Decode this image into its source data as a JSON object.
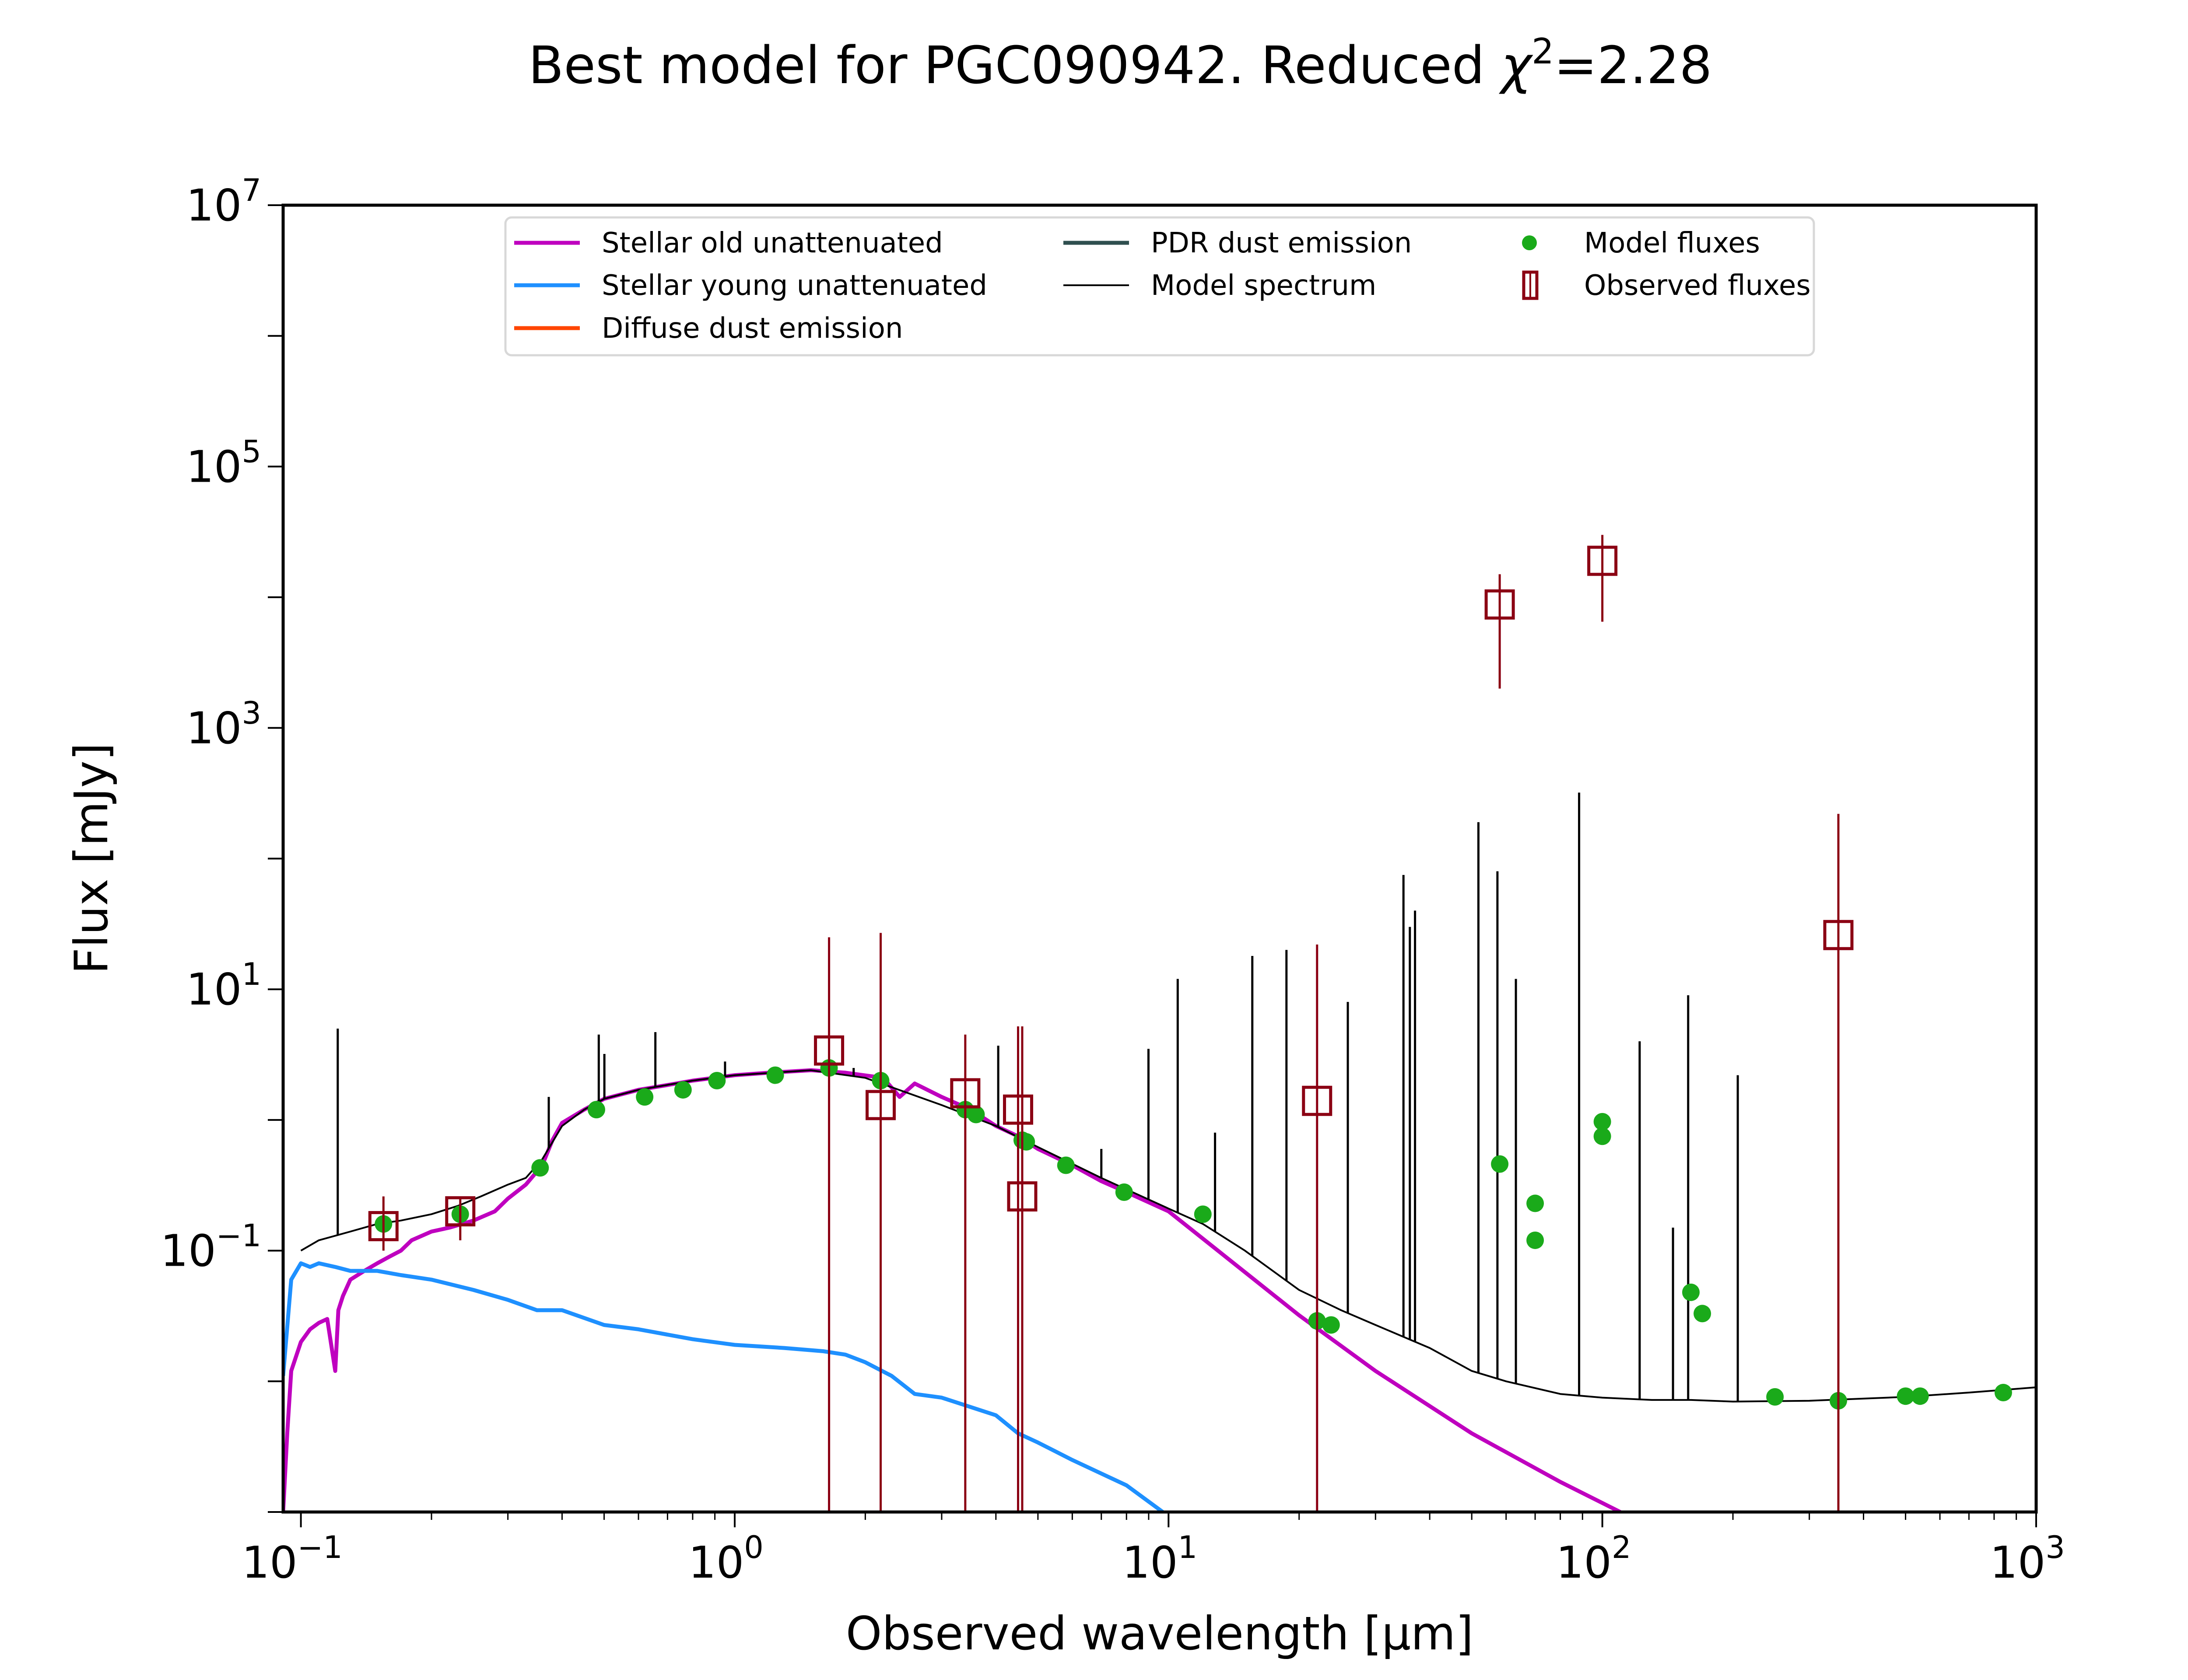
{
  "chart_data": {
    "type": "line",
    "title": "Best model for PGC090942. Reduced χ²=2.28",
    "title_parts": {
      "prefix": "Best model for PGC090942. Reduced ",
      "chi": "χ",
      "sup": "2",
      "suffix": "=2.28"
    },
    "xlabel": "Observed wavelength [μm]",
    "ylabel": "Flux [mJy]",
    "xscale": "log",
    "yscale": "log",
    "xlim": [
      0.091,
      1000
    ],
    "ylim": [
      0.001,
      10000000
    ],
    "x_ticks": [
      {
        "base": "10",
        "exp": "−1",
        "value": 0.1
      },
      {
        "base": "10",
        "exp": "0",
        "value": 1
      },
      {
        "base": "10",
        "exp": "1",
        "value": 10
      },
      {
        "base": "10",
        "exp": "2",
        "value": 100
      },
      {
        "base": "10",
        "exp": "3",
        "value": 1000
      }
    ],
    "y_ticks": [
      {
        "base": "10",
        "exp": "−1",
        "value": 0.1
      },
      {
        "base": "10",
        "exp": "1",
        "value": 10
      },
      {
        "base": "10",
        "exp": "3",
        "value": 1000
      },
      {
        "base": "10",
        "exp": "5",
        "value": 100000
      },
      {
        "base": "10",
        "exp": "7",
        "value": 10000000
      }
    ],
    "grid": false,
    "legend": {
      "position": "top-center",
      "entries": [
        {
          "label": "Stellar old unattenuated",
          "color": "#bf00bf",
          "kind": "line"
        },
        {
          "label": "Stellar young unattenuated",
          "color": "#1e90ff",
          "kind": "line"
        },
        {
          "label": "Diffuse dust emission",
          "color": "#ff4500",
          "kind": "line"
        },
        {
          "label": "PDR dust emission",
          "color": "#2f4f4f",
          "kind": "line"
        },
        {
          "label": "Model spectrum",
          "color": "#000000",
          "kind": "thinline"
        },
        {
          "label": "Model fluxes",
          "color": "#1aaa1a",
          "kind": "dot"
        },
        {
          "label": "Observed fluxes",
          "color": "#8b0013",
          "kind": "square"
        }
      ]
    },
    "series": [
      {
        "name": "Stellar old unattenuated",
        "color": "#bf00bf",
        "x": [
          0.091,
          0.093,
          0.095,
          0.1,
          0.105,
          0.11,
          0.115,
          0.12,
          0.122,
          0.125,
          0.13,
          0.14,
          0.15,
          0.16,
          0.17,
          0.18,
          0.2,
          0.22,
          0.25,
          0.28,
          0.3,
          0.33,
          0.36,
          0.38,
          0.4,
          0.45,
          0.5,
          0.6,
          0.7,
          0.8,
          1.0,
          1.2,
          1.5,
          1.8,
          2.2,
          2.4,
          2.6,
          3.0,
          3.5,
          4.0,
          4.5,
          5.0,
          6.0,
          7.0,
          8.0,
          10,
          20,
          30,
          50,
          80,
          110
        ],
        "y": [
          0.001,
          0.004,
          0.012,
          0.02,
          0.025,
          0.028,
          0.03,
          0.012,
          0.035,
          0.045,
          0.06,
          0.07,
          0.08,
          0.09,
          0.1,
          0.12,
          0.14,
          0.15,
          0.17,
          0.2,
          0.25,
          0.32,
          0.45,
          0.7,
          0.95,
          1.2,
          1.45,
          1.7,
          1.85,
          2.0,
          2.2,
          2.3,
          2.4,
          2.3,
          2.1,
          1.5,
          1.9,
          1.5,
          1.2,
          0.9,
          0.75,
          0.6,
          0.45,
          0.34,
          0.28,
          0.2,
          0.032,
          0.012,
          0.004,
          0.0017,
          0.001
        ]
      },
      {
        "name": "Stellar young unattenuated",
        "color": "#1e90ff",
        "x": [
          0.091,
          0.095,
          0.1,
          0.105,
          0.11,
          0.12,
          0.13,
          0.15,
          0.17,
          0.2,
          0.25,
          0.3,
          0.35,
          0.4,
          0.5,
          0.6,
          0.8,
          1.0,
          1.3,
          1.6,
          1.8,
          2.0,
          2.3,
          2.6,
          3.0,
          4.0,
          4.5,
          5.0,
          6.0,
          8.0,
          9.7
        ],
        "y": [
          0.011,
          0.06,
          0.08,
          0.075,
          0.08,
          0.075,
          0.07,
          0.07,
          0.065,
          0.06,
          0.05,
          0.042,
          0.035,
          0.035,
          0.027,
          0.025,
          0.021,
          0.019,
          0.018,
          0.017,
          0.016,
          0.014,
          0.011,
          0.008,
          0.0075,
          0.0055,
          0.004,
          0.0034,
          0.0025,
          0.0016,
          0.001
        ]
      },
      {
        "name": "Model spectrum",
        "color": "#000000",
        "x": [
          0.1,
          0.11,
          0.12,
          0.13,
          0.15,
          0.17,
          0.2,
          0.23,
          0.26,
          0.3,
          0.33,
          0.36,
          0.4,
          0.45,
          0.5,
          0.6,
          0.8,
          1.0,
          1.5,
          2.0,
          3.0,
          4.0,
          5.0,
          7.0,
          10,
          12,
          15,
          20,
          25,
          30,
          40,
          50,
          60,
          80,
          100,
          130,
          160,
          200,
          300,
          500,
          700,
          1000
        ],
        "y": [
          0.1,
          0.12,
          0.13,
          0.14,
          0.16,
          0.17,
          0.19,
          0.22,
          0.26,
          0.32,
          0.36,
          0.5,
          0.9,
          1.2,
          1.45,
          1.7,
          2.0,
          2.2,
          2.4,
          2.1,
          1.3,
          0.9,
          0.62,
          0.36,
          0.21,
          0.16,
          0.1,
          0.05,
          0.035,
          0.027,
          0.018,
          0.012,
          0.01,
          0.008,
          0.0075,
          0.0072,
          0.0072,
          0.007,
          0.0071,
          0.0076,
          0.0082,
          0.009
        ]
      }
    ],
    "emission_lines": [
      {
        "x": 0.1216,
        "y": 5.0
      },
      {
        "x": 0.3727,
        "y": 1.5
      },
      {
        "x": 0.486,
        "y": 4.5
      },
      {
        "x": 0.5007,
        "y": 3.2
      },
      {
        "x": 0.6563,
        "y": 4.7
      },
      {
        "x": 0.95,
        "y": 2.8
      },
      {
        "x": 1.88,
        "y": 2.5
      },
      {
        "x": 4.05,
        "y": 3.7
      },
      {
        "x": 7.0,
        "y": 0.6
      },
      {
        "x": 8.99,
        "y": 3.5
      },
      {
        "x": 10.5,
        "y": 12
      },
      {
        "x": 12.8,
        "y": 0.8
      },
      {
        "x": 15.6,
        "y": 18
      },
      {
        "x": 18.7,
        "y": 20
      },
      {
        "x": 25.9,
        "y": 8
      },
      {
        "x": 34.8,
        "y": 75
      },
      {
        "x": 36.0,
        "y": 30
      },
      {
        "x": 37.0,
        "y": 40
      },
      {
        "x": 51.8,
        "y": 190
      },
      {
        "x": 57.3,
        "y": 80
      },
      {
        "x": 63.2,
        "y": 12
      },
      {
        "x": 88.4,
        "y": 320
      },
      {
        "x": 121.9,
        "y": 4
      },
      {
        "x": 145.5,
        "y": 0.15
      },
      {
        "x": 157.7,
        "y": 9
      },
      {
        "x": 205.2,
        "y": 2.2
      }
    ],
    "model_fluxes": {
      "x": [
        0.155,
        0.233,
        0.356,
        0.48,
        0.62,
        0.76,
        0.91,
        1.24,
        1.65,
        2.17,
        3.4,
        3.6,
        4.6,
        4.7,
        5.8,
        7.9,
        12,
        22,
        23.7,
        58,
        70,
        70,
        100,
        100,
        160,
        170,
        250,
        350,
        500,
        540,
        840
      ],
      "y": [
        0.16,
        0.19,
        0.43,
        1.2,
        1.5,
        1.7,
        2.0,
        2.2,
        2.5,
        2.0,
        1.2,
        1.1,
        0.7,
        0.68,
        0.45,
        0.28,
        0.19,
        0.029,
        0.027,
        0.46,
        0.23,
        0.12,
        0.75,
        0.97,
        0.048,
        0.033,
        0.0076,
        0.0071,
        0.0077,
        0.0077,
        0.0082
      ]
    },
    "observed_fluxes": {
      "x": [
        0.155,
        0.233,
        1.65,
        2.17,
        3.4,
        4.5,
        4.6,
        22,
        58,
        100,
        350
      ],
      "y": [
        0.154,
        0.2,
        3.4,
        1.3,
        1.6,
        1.2,
        0.26,
        1.4,
        8800,
        19000,
        26
      ],
      "err_low": [
        0.1,
        0.12,
        0.001,
        0.001,
        0.001,
        0.001,
        0.001,
        0.001,
        2000,
        6500,
        0.001
      ],
      "err_high": [
        0.26,
        0.26,
        25,
        27,
        4.5,
        5.2,
        5.2,
        22,
        15000,
        30000,
        220
      ]
    }
  }
}
